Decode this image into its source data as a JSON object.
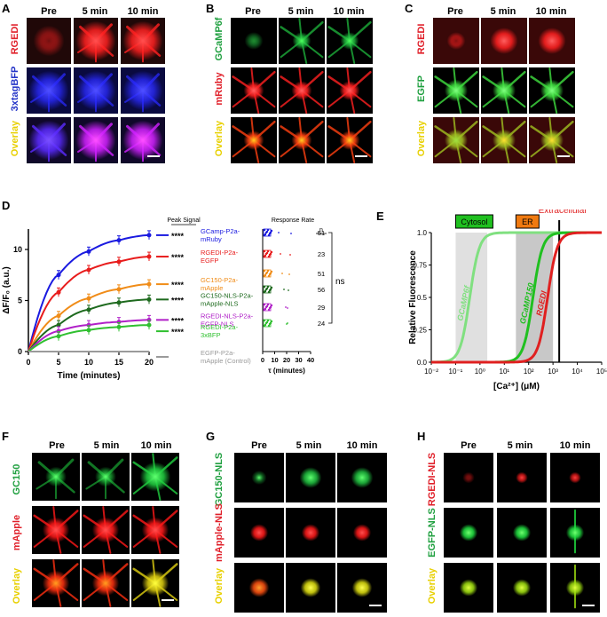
{
  "panelA": {
    "label": "A",
    "cols": [
      "Pre",
      "5 min",
      "10 min"
    ],
    "rows": [
      {
        "label": "RGEDI",
        "color": "#e0202a"
      },
      {
        "label": "3xtagBFP",
        "color": "#2535c8"
      },
      {
        "label": "Overlay",
        "color": "#e8d000"
      }
    ]
  },
  "panelB": {
    "label": "B",
    "cols": [
      "Pre",
      "5 min",
      "10 min"
    ],
    "rows": [
      {
        "label": "GCaMP6f",
        "color": "#20a040"
      },
      {
        "label": "mRuby",
        "color": "#e0202a"
      },
      {
        "label": "Overlay",
        "color": "#e8d000"
      }
    ]
  },
  "panelC": {
    "label": "C",
    "cols": [
      "Pre",
      "5 min",
      "10 min"
    ],
    "rows": [
      {
        "label": "RGEDI",
        "color": "#e0202a"
      },
      {
        "label": "EGFP",
        "color": "#20a040"
      },
      {
        "label": "Overlay",
        "color": "#e8d000"
      }
    ]
  },
  "panelD": {
    "label": "D",
    "peak_signal_header": "Peak Signal",
    "response_rate_header": "Response Rate",
    "n_header": "n",
    "ns_label": "ns",
    "tau_label": "τ (minutes)",
    "tau_ticks": [
      "0",
      "10",
      "20",
      "30",
      "40"
    ]
  },
  "panelE": {
    "label": "E",
    "ylabel": "Relative Fluorescence",
    "xlabel": "[Ca²⁺] (μM)",
    "boxes": [
      {
        "label": "Cytosol",
        "color": "#20c020"
      },
      {
        "label": "ER",
        "color": "#f07a10"
      },
      {
        "label": "Extracellular",
        "color": "#e02020"
      }
    ]
  },
  "panelF": {
    "label": "F",
    "cols": [
      "Pre",
      "5 min",
      "10 min"
    ],
    "rows": [
      {
        "label": "GC150",
        "color": "#20a040"
      },
      {
        "label": "mApple",
        "color": "#e0202a"
      },
      {
        "label": "Overlay",
        "color": "#e8d000"
      }
    ]
  },
  "panelG": {
    "label": "G",
    "cols": [
      "Pre",
      "5 min",
      "10 min"
    ],
    "rows": [
      {
        "label": "GC150-NLS",
        "color": "#20a040"
      },
      {
        "label": "mApple-NLS",
        "color": "#e0202a"
      },
      {
        "label": "Overlay",
        "color": "#e8d000"
      }
    ]
  },
  "panelH": {
    "label": "H",
    "cols": [
      "Pre",
      "5 min",
      "10 min"
    ],
    "rows": [
      {
        "label": "RGEDI-NLS",
        "color": "#e0202a"
      },
      {
        "label": "EGFP-NLS",
        "color": "#20a040"
      },
      {
        "label": "Overlay",
        "color": "#e8d000"
      }
    ]
  },
  "chart_data": [
    {
      "type": "line",
      "panel": "D",
      "xlabel": "Time (minutes)",
      "ylabel": "ΔF/F₀ (a.u.)",
      "xlim": [
        0,
        20
      ],
      "ylim": [
        0,
        12
      ],
      "xticks": [
        0,
        5,
        10,
        15,
        20
      ],
      "yticks": [
        0,
        5,
        10
      ],
      "x": [
        0,
        5,
        10,
        15,
        20
      ],
      "series": [
        {
          "name": "GCamp-P2a-mRuby",
          "color": "#1a1ae0",
          "values": [
            0,
            7.5,
            9.8,
            10.9,
            11.4
          ],
          "sig": "****",
          "rate_n": "51"
        },
        {
          "name": "RGEDI-P2a-EGFP",
          "color": "#e81c1c",
          "values": [
            0,
            5.8,
            8.0,
            8.8,
            9.3
          ],
          "sig": "****",
          "rate_n": "23"
        },
        {
          "name": "GC150-P2a-mApple",
          "color": "#f08c18",
          "values": [
            0,
            3.5,
            5.2,
            6.1,
            6.6
          ],
          "sig": "****",
          "rate_n": "51"
        },
        {
          "name": "GC150-NLS-P2a-mApple-NLS",
          "color": "#1e6a1e",
          "values": [
            0,
            2.6,
            4.1,
            4.8,
            5.1
          ],
          "sig": "****",
          "rate_n": "56"
        },
        {
          "name": "RGEDI-NLS-P2a-EGFP-NLS",
          "color": "#b020c8",
          "values": [
            0,
            2.0,
            2.6,
            2.9,
            3.1
          ],
          "sig": "****",
          "rate_n": "29"
        },
        {
          "name": "RGEDI-P2a-3xBFP",
          "color": "#30c030",
          "values": [
            0,
            1.5,
            2.1,
            2.4,
            2.6
          ],
          "sig": "****",
          "rate_n": "24"
        },
        {
          "name": "EGFP-P2a-mApple (Control)",
          "color": "#9a9a9a",
          "values": [
            0,
            0,
            0,
            0,
            0
          ],
          "sig": "",
          "rate_n": ""
        }
      ]
    },
    {
      "type": "line",
      "panel": "E",
      "xlabel": "[Ca²⁺] (μM)",
      "ylabel": "Relative Fluorescence",
      "xscale": "log",
      "xlim": [
        0.01,
        100000
      ],
      "ylim": [
        0,
        1
      ],
      "yticks": [
        0.0,
        0.25,
        0.5,
        0.75,
        1.0
      ],
      "xticks": [
        "10⁻²",
        "10⁻¹",
        "10⁰",
        "10¹",
        "10²",
        "10³",
        "10⁴",
        "10⁵"
      ],
      "series": [
        {
          "name": "GCaMP6f",
          "color": "#80e080",
          "kd": 0.38
        },
        {
          "name": "GCaMP150",
          "color": "#20c020",
          "kd": 150
        },
        {
          "name": "RGEDI",
          "color": "#e02020",
          "kd": 600
        }
      ]
    }
  ]
}
